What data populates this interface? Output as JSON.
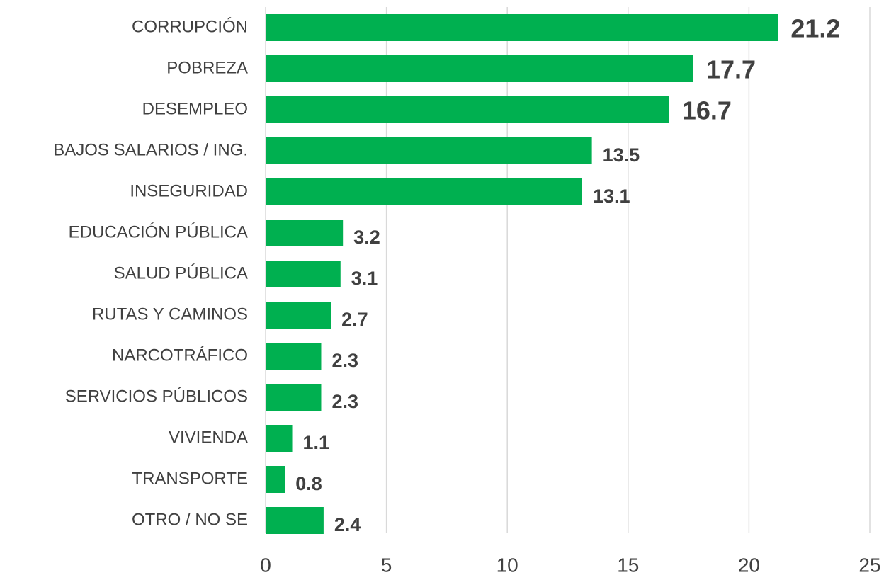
{
  "chart_data": {
    "type": "bar",
    "orientation": "horizontal",
    "categories": [
      "CORRUPCIÓN",
      "POBREZA",
      "DESEMPLEO",
      "BAJOS SALARIOS / ING.",
      "INSEGURIDAD",
      "EDUCACIÓN PÚBLICA",
      "SALUD PÚBLICA",
      "RUTAS Y CAMINOS",
      "NARCOTRÁFICO",
      "SERVICIOS PÚBLICOS",
      "VIVIENDA",
      "TRANSPORTE",
      "OTRO / NO SE"
    ],
    "values": [
      21.2,
      17.7,
      16.7,
      13.5,
      13.1,
      3.2,
      3.1,
      2.7,
      2.3,
      2.3,
      1.1,
      0.8,
      2.4
    ],
    "color": "#00b050",
    "xlim": [
      0,
      25
    ],
    "xticks": [
      0,
      5,
      10,
      15,
      20,
      25
    ],
    "grid": true
  }
}
